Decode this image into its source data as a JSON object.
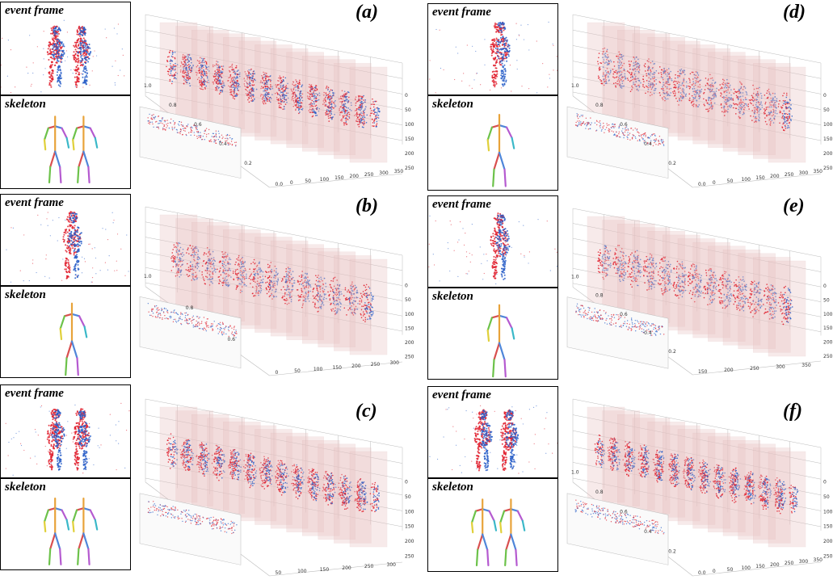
{
  "colors": {
    "positive_event": "#e0202e",
    "negative_event": "#2a5fc8",
    "slice_fill": "#e9c4c4",
    "grid": "#bbbbbb"
  },
  "panels": [
    {
      "letter": "(a)",
      "event_label": "event frame",
      "skeleton_label": "skeleton",
      "people": 2,
      "x_ticks": [
        "0.0",
        "0",
        "50",
        "100",
        "150",
        "200",
        "250",
        "300",
        "350"
      ],
      "y_ticks": [
        "1.0",
        "0.8",
        "0.6",
        "0.4",
        "0.2"
      ],
      "z_ticks": [
        "0",
        "50",
        "100",
        "150",
        "200",
        "250"
      ]
    },
    {
      "letter": "(b)",
      "event_label": "event frame",
      "skeleton_label": "skeleton",
      "people": 1,
      "x_ticks": [
        "0",
        "50",
        "100",
        "150",
        "200",
        "250",
        "300"
      ],
      "y_ticks": [
        "1.0",
        "0.8",
        "0.6"
      ],
      "z_ticks": [
        "0",
        "50",
        "100",
        "150",
        "200",
        "250"
      ]
    },
    {
      "letter": "(c)",
      "event_label": "event frame",
      "skeleton_label": "skeleton",
      "people": 2,
      "x_ticks": [
        "50",
        "100",
        "150",
        "200",
        "250",
        "300"
      ],
      "y_ticks": [],
      "z_ticks": [
        "0",
        "50",
        "100",
        "150",
        "200",
        "250"
      ]
    },
    {
      "letter": "(d)",
      "event_label": "event frame",
      "skeleton_label": "skeleton",
      "people": 1,
      "x_ticks": [
        "0.0",
        "0",
        "50",
        "100",
        "150",
        "200",
        "250",
        "300",
        "350"
      ],
      "y_ticks": [
        "1.0",
        "0.8",
        "0.6",
        "0.4",
        "0.2"
      ],
      "z_ticks": [
        "0",
        "50",
        "100",
        "150",
        "200",
        "250"
      ]
    },
    {
      "letter": "(e)",
      "event_label": "event frame",
      "skeleton_label": "skeleton",
      "people": 1,
      "x_ticks": [
        "150",
        "200",
        "250",
        "300",
        "350"
      ],
      "y_ticks": [
        "1.0",
        "0.8",
        "0.6",
        "0.4",
        "0.2"
      ],
      "z_ticks": [
        "0",
        "50",
        "100",
        "150",
        "200",
        "250"
      ]
    },
    {
      "letter": "(f)",
      "event_label": "event frame",
      "skeleton_label": "skeleton",
      "people": 2,
      "x_ticks": [
        "0.0",
        "0",
        "50",
        "100",
        "150",
        "200",
        "250",
        "300",
        "350"
      ],
      "y_ticks": [
        "1.0",
        "0.8",
        "0.6",
        "0.4",
        "0.2"
      ],
      "z_ticks": [
        "0",
        "50",
        "100",
        "150",
        "200",
        "250"
      ]
    }
  ]
}
